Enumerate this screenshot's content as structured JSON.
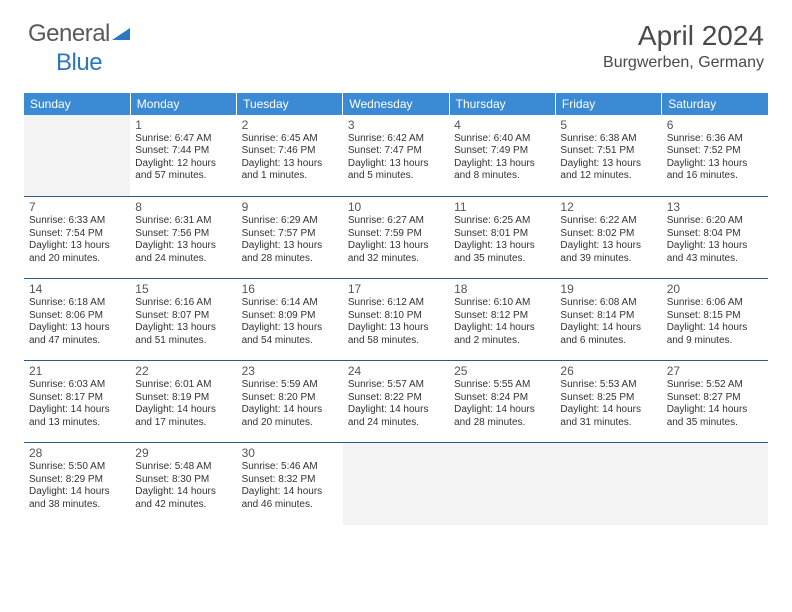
{
  "logo": {
    "word1": "General",
    "word2": "Blue",
    "triangle_color": "#2b77c0",
    "text_gray": "#5a5a5a"
  },
  "title": "April 2024",
  "location": "Burgwerben, Germany",
  "colors": {
    "header_bg": "#3b8bd4",
    "header_text": "#ffffff",
    "cell_border": "#2b5a8a",
    "empty_bg": "#f3f3f3"
  },
  "day_headers": [
    "Sunday",
    "Monday",
    "Tuesday",
    "Wednesday",
    "Thursday",
    "Friday",
    "Saturday"
  ],
  "weeks": [
    [
      {
        "empty": true
      },
      {
        "n": "1",
        "sr": "Sunrise: 6:47 AM",
        "ss": "Sunset: 7:44 PM",
        "dl": "Daylight: 12 hours and 57 minutes."
      },
      {
        "n": "2",
        "sr": "Sunrise: 6:45 AM",
        "ss": "Sunset: 7:46 PM",
        "dl": "Daylight: 13 hours and 1 minutes."
      },
      {
        "n": "3",
        "sr": "Sunrise: 6:42 AM",
        "ss": "Sunset: 7:47 PM",
        "dl": "Daylight: 13 hours and 5 minutes."
      },
      {
        "n": "4",
        "sr": "Sunrise: 6:40 AM",
        "ss": "Sunset: 7:49 PM",
        "dl": "Daylight: 13 hours and 8 minutes."
      },
      {
        "n": "5",
        "sr": "Sunrise: 6:38 AM",
        "ss": "Sunset: 7:51 PM",
        "dl": "Daylight: 13 hours and 12 minutes."
      },
      {
        "n": "6",
        "sr": "Sunrise: 6:36 AM",
        "ss": "Sunset: 7:52 PM",
        "dl": "Daylight: 13 hours and 16 minutes."
      }
    ],
    [
      {
        "n": "7",
        "sr": "Sunrise: 6:33 AM",
        "ss": "Sunset: 7:54 PM",
        "dl": "Daylight: 13 hours and 20 minutes."
      },
      {
        "n": "8",
        "sr": "Sunrise: 6:31 AM",
        "ss": "Sunset: 7:56 PM",
        "dl": "Daylight: 13 hours and 24 minutes."
      },
      {
        "n": "9",
        "sr": "Sunrise: 6:29 AM",
        "ss": "Sunset: 7:57 PM",
        "dl": "Daylight: 13 hours and 28 minutes."
      },
      {
        "n": "10",
        "sr": "Sunrise: 6:27 AM",
        "ss": "Sunset: 7:59 PM",
        "dl": "Daylight: 13 hours and 32 minutes."
      },
      {
        "n": "11",
        "sr": "Sunrise: 6:25 AM",
        "ss": "Sunset: 8:01 PM",
        "dl": "Daylight: 13 hours and 35 minutes."
      },
      {
        "n": "12",
        "sr": "Sunrise: 6:22 AM",
        "ss": "Sunset: 8:02 PM",
        "dl": "Daylight: 13 hours and 39 minutes."
      },
      {
        "n": "13",
        "sr": "Sunrise: 6:20 AM",
        "ss": "Sunset: 8:04 PM",
        "dl": "Daylight: 13 hours and 43 minutes."
      }
    ],
    [
      {
        "n": "14",
        "sr": "Sunrise: 6:18 AM",
        "ss": "Sunset: 8:06 PM",
        "dl": "Daylight: 13 hours and 47 minutes."
      },
      {
        "n": "15",
        "sr": "Sunrise: 6:16 AM",
        "ss": "Sunset: 8:07 PM",
        "dl": "Daylight: 13 hours and 51 minutes."
      },
      {
        "n": "16",
        "sr": "Sunrise: 6:14 AM",
        "ss": "Sunset: 8:09 PM",
        "dl": "Daylight: 13 hours and 54 minutes."
      },
      {
        "n": "17",
        "sr": "Sunrise: 6:12 AM",
        "ss": "Sunset: 8:10 PM",
        "dl": "Daylight: 13 hours and 58 minutes."
      },
      {
        "n": "18",
        "sr": "Sunrise: 6:10 AM",
        "ss": "Sunset: 8:12 PM",
        "dl": "Daylight: 14 hours and 2 minutes."
      },
      {
        "n": "19",
        "sr": "Sunrise: 6:08 AM",
        "ss": "Sunset: 8:14 PM",
        "dl": "Daylight: 14 hours and 6 minutes."
      },
      {
        "n": "20",
        "sr": "Sunrise: 6:06 AM",
        "ss": "Sunset: 8:15 PM",
        "dl": "Daylight: 14 hours and 9 minutes."
      }
    ],
    [
      {
        "n": "21",
        "sr": "Sunrise: 6:03 AM",
        "ss": "Sunset: 8:17 PM",
        "dl": "Daylight: 14 hours and 13 minutes."
      },
      {
        "n": "22",
        "sr": "Sunrise: 6:01 AM",
        "ss": "Sunset: 8:19 PM",
        "dl": "Daylight: 14 hours and 17 minutes."
      },
      {
        "n": "23",
        "sr": "Sunrise: 5:59 AM",
        "ss": "Sunset: 8:20 PM",
        "dl": "Daylight: 14 hours and 20 minutes."
      },
      {
        "n": "24",
        "sr": "Sunrise: 5:57 AM",
        "ss": "Sunset: 8:22 PM",
        "dl": "Daylight: 14 hours and 24 minutes."
      },
      {
        "n": "25",
        "sr": "Sunrise: 5:55 AM",
        "ss": "Sunset: 8:24 PM",
        "dl": "Daylight: 14 hours and 28 minutes."
      },
      {
        "n": "26",
        "sr": "Sunrise: 5:53 AM",
        "ss": "Sunset: 8:25 PM",
        "dl": "Daylight: 14 hours and 31 minutes."
      },
      {
        "n": "27",
        "sr": "Sunrise: 5:52 AM",
        "ss": "Sunset: 8:27 PM",
        "dl": "Daylight: 14 hours and 35 minutes."
      }
    ],
    [
      {
        "n": "28",
        "sr": "Sunrise: 5:50 AM",
        "ss": "Sunset: 8:29 PM",
        "dl": "Daylight: 14 hours and 38 minutes."
      },
      {
        "n": "29",
        "sr": "Sunrise: 5:48 AM",
        "ss": "Sunset: 8:30 PM",
        "dl": "Daylight: 14 hours and 42 minutes."
      },
      {
        "n": "30",
        "sr": "Sunrise: 5:46 AM",
        "ss": "Sunset: 8:32 PM",
        "dl": "Daylight: 14 hours and 46 minutes."
      },
      {
        "trailing": true
      },
      {
        "trailing": true
      },
      {
        "trailing": true
      },
      {
        "trailing": true
      }
    ]
  ]
}
